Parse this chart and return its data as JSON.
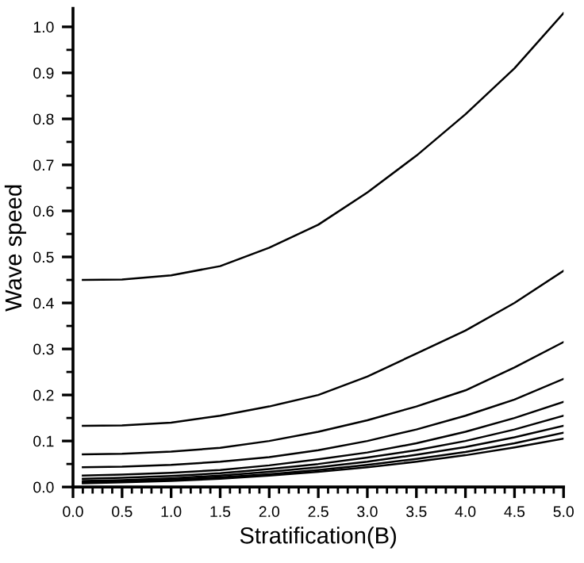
{
  "chart_data": {
    "type": "line",
    "xlabel": "Stratification(B)",
    "ylabel": "Wave speed",
    "x": [
      0.1,
      0.5,
      1.0,
      1.5,
      2.0,
      2.5,
      3.0,
      3.5,
      4.0,
      4.5,
      5.0
    ],
    "series": [
      {
        "color": "#000000",
        "values": [
          0.45,
          0.451,
          0.46,
          0.48,
          0.52,
          0.57,
          0.64,
          0.72,
          0.81,
          0.91,
          1.03
        ]
      },
      {
        "color": "#000000",
        "values": [
          0.133,
          0.134,
          0.14,
          0.155,
          0.175,
          0.2,
          0.24,
          0.29,
          0.34,
          0.4,
          0.47
        ]
      },
      {
        "color": "#000000",
        "values": [
          0.071,
          0.072,
          0.077,
          0.085,
          0.1,
          0.12,
          0.145,
          0.175,
          0.21,
          0.26,
          0.315
        ]
      },
      {
        "color": "#000000",
        "values": [
          0.043,
          0.044,
          0.048,
          0.055,
          0.065,
          0.08,
          0.1,
          0.125,
          0.155,
          0.19,
          0.235
        ]
      },
      {
        "color": "#000000",
        "values": [
          0.025,
          0.027,
          0.031,
          0.037,
          0.047,
          0.06,
          0.075,
          0.095,
          0.12,
          0.15,
          0.185
        ]
      },
      {
        "color": "#000000",
        "values": [
          0.018,
          0.02,
          0.024,
          0.03,
          0.039,
          0.05,
          0.064,
          0.08,
          0.1,
          0.125,
          0.155
        ]
      },
      {
        "color": "#000000",
        "values": [
          0.013,
          0.015,
          0.019,
          0.025,
          0.033,
          0.043,
          0.055,
          0.07,
          0.087,
          0.108,
          0.133
        ]
      },
      {
        "color": "#000000",
        "values": [
          0.01,
          0.012,
          0.016,
          0.021,
          0.028,
          0.037,
          0.048,
          0.061,
          0.076,
          0.095,
          0.118
        ]
      },
      {
        "color": "#000000",
        "values": [
          0.008,
          0.01,
          0.013,
          0.018,
          0.025,
          0.033,
          0.043,
          0.055,
          0.069,
          0.086,
          0.105
        ]
      }
    ],
    "xlim": [
      0,
      5
    ],
    "ylim": [
      0,
      1.04
    ],
    "xticks": [
      {
        "value": 0,
        "label": "0.0"
      },
      0.5,
      {
        "value": 1,
        "label": "1.0"
      },
      1.5,
      {
        "value": 2,
        "label": "2.0"
      },
      2.5,
      {
        "value": 3,
        "label": "3.0"
      },
      3.5,
      {
        "value": 4,
        "label": "4.0"
      },
      4.5,
      {
        "value": 5,
        "label": "5.0"
      }
    ],
    "yticks": [
      {
        "value": 0,
        "label": "0.0"
      },
      0.1,
      0.2,
      0.3,
      0.4,
      0.5,
      0.6,
      0.7,
      0.8,
      0.9,
      {
        "value": 1,
        "label": "1.0"
      }
    ],
    "grid": false,
    "legend": false,
    "marker": "none",
    "line_style": "solid"
  }
}
